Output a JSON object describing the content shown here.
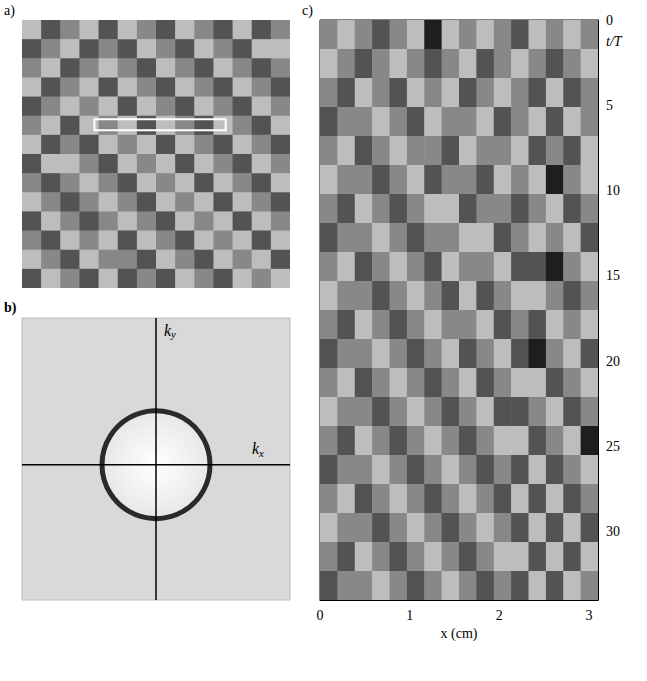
{
  "chart_data": [
    {
      "type": "heatmap",
      "panel": "a)",
      "tick_labels": false,
      "crange": [
        -2,
        2
      ],
      "cells": [
        [
          1,
          -1,
          0,
          1,
          -1,
          1,
          0,
          -1,
          1,
          0,
          -1,
          1,
          -1,
          0
        ],
        [
          -1,
          0,
          1,
          -1,
          0,
          -1,
          1,
          0,
          -1,
          1,
          0,
          -1,
          1,
          1
        ],
        [
          0,
          1,
          -1,
          0,
          1,
          0,
          -1,
          1,
          0,
          -1,
          1,
          0,
          -1,
          0
        ],
        [
          1,
          -1,
          0,
          1,
          -1,
          1,
          0,
          -1,
          1,
          0,
          -1,
          1,
          0,
          -1
        ],
        [
          -1,
          0,
          1,
          0,
          1,
          -1,
          1,
          0,
          -1,
          1,
          0,
          -1,
          1,
          0
        ],
        [
          0,
          1,
          -1,
          1,
          0,
          1,
          -1,
          1,
          0,
          -1,
          1,
          0,
          -1,
          1
        ],
        [
          1,
          -1,
          0,
          -1,
          1,
          0,
          1,
          -1,
          1,
          0,
          -1,
          1,
          0,
          -1
        ],
        [
          -1,
          1,
          1,
          0,
          -1,
          1,
          0,
          1,
          -1,
          1,
          0,
          -1,
          1,
          0
        ],
        [
          0,
          -1,
          0,
          1,
          0,
          -1,
          1,
          0,
          1,
          -1,
          1,
          0,
          -1,
          1
        ],
        [
          1,
          0,
          -1,
          0,
          1,
          0,
          -1,
          1,
          0,
          1,
          -1,
          1,
          0,
          -1
        ],
        [
          -1,
          1,
          0,
          -1,
          0,
          1,
          0,
          -1,
          1,
          0,
          1,
          -1,
          1,
          0
        ],
        [
          0,
          -1,
          1,
          0,
          1,
          -1,
          1,
          0,
          -1,
          1,
          0,
          1,
          -1,
          1
        ],
        [
          1,
          0,
          -1,
          1,
          0,
          0,
          -1,
          1,
          0,
          -1,
          1,
          0,
          1,
          -1
        ],
        [
          -1,
          1,
          0,
          -1,
          1,
          -1,
          0,
          -1,
          1,
          0,
          -1,
          1,
          0,
          1
        ]
      ]
    },
    {
      "type": "spectrum",
      "panel": "b)",
      "xlabel": "kx",
      "ylabel": "ky",
      "tick_labels": false
    },
    {
      "type": "heatmap",
      "panel": "c)",
      "xlabel": "x (cm)",
      "ylabel": "t/T",
      "xlim": [
        0,
        3.1
      ],
      "ylim": [
        0,
        34
      ],
      "xticks": [
        0,
        1,
        2,
        3
      ],
      "yticks": [
        0,
        5,
        10,
        15,
        20,
        25,
        30
      ],
      "crange": [
        -2,
        2
      ],
      "cells": [
        [
          0,
          1,
          0,
          -1,
          0,
          1,
          -2,
          1,
          0,
          1,
          0,
          -1,
          1,
          0,
          1,
          0
        ],
        [
          1,
          0,
          -1,
          0,
          1,
          0,
          -1,
          0,
          1,
          -1,
          0,
          1,
          0,
          -1,
          0,
          1
        ],
        [
          0,
          -1,
          1,
          0,
          -1,
          1,
          0,
          1,
          -1,
          0,
          1,
          0,
          -1,
          1,
          -1,
          0
        ],
        [
          -1,
          0,
          0,
          1,
          0,
          -1,
          1,
          0,
          0,
          1,
          -1,
          0,
          1,
          -1,
          1,
          0
        ],
        [
          0,
          1,
          -1,
          0,
          1,
          0,
          0,
          -1,
          1,
          0,
          0,
          1,
          -1,
          0,
          -1,
          1
        ],
        [
          1,
          0,
          0,
          -1,
          0,
          1,
          -1,
          0,
          0,
          -1,
          1,
          0,
          1,
          -2,
          0,
          1
        ],
        [
          0,
          -1,
          1,
          0,
          -1,
          0,
          1,
          1,
          -1,
          0,
          0,
          -1,
          0,
          1,
          -1,
          0
        ],
        [
          -1,
          0,
          0,
          1,
          0,
          -1,
          0,
          0,
          1,
          1,
          -1,
          0,
          1,
          0,
          1,
          -1
        ],
        [
          0,
          1,
          -1,
          0,
          1,
          0,
          -1,
          1,
          0,
          0,
          1,
          -1,
          -1,
          -2,
          0,
          1
        ],
        [
          1,
          0,
          0,
          -1,
          0,
          1,
          0,
          -1,
          1,
          -1,
          0,
          1,
          1,
          0,
          -1,
          0
        ],
        [
          0,
          -1,
          1,
          0,
          -1,
          0,
          1,
          0,
          0,
          1,
          -1,
          0,
          -1,
          1,
          0,
          1
        ],
        [
          -1,
          0,
          0,
          1,
          0,
          -1,
          0,
          1,
          -1,
          0,
          1,
          -1,
          -2,
          0,
          1,
          -1
        ],
        [
          0,
          1,
          -1,
          0,
          1,
          0,
          -1,
          0,
          1,
          -1,
          0,
          1,
          1,
          -1,
          0,
          1
        ],
        [
          1,
          0,
          0,
          -1,
          0,
          1,
          0,
          -1,
          0,
          1,
          -1,
          -1,
          0,
          1,
          -1,
          0
        ],
        [
          0,
          -1,
          1,
          0,
          -1,
          0,
          1,
          0,
          -1,
          0,
          1,
          1,
          -1,
          0,
          1,
          -2
        ],
        [
          -1,
          0,
          0,
          1,
          0,
          -1,
          0,
          1,
          0,
          -1,
          0,
          -1,
          1,
          -1,
          0,
          1
        ],
        [
          0,
          1,
          -1,
          0,
          1,
          0,
          -1,
          0,
          1,
          0,
          -1,
          1,
          -1,
          1,
          -1,
          0
        ],
        [
          1,
          0,
          0,
          -1,
          0,
          1,
          0,
          -1,
          0,
          1,
          0,
          -1,
          1,
          -1,
          1,
          -1
        ],
        [
          0,
          -1,
          1,
          0,
          -1,
          0,
          1,
          0,
          -1,
          0,
          1,
          1,
          -1,
          1,
          -1,
          1
        ],
        [
          -1,
          0,
          0,
          1,
          0,
          -1,
          0,
          1,
          0,
          -1,
          0,
          -1,
          1,
          -1,
          1,
          0
        ]
      ]
    }
  ]
}
